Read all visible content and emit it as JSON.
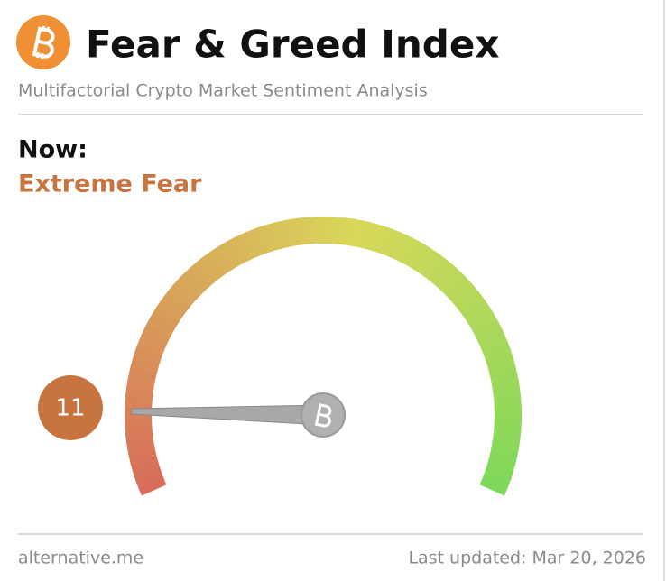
{
  "header": {
    "title": "Fear & Greed Index",
    "subtitle": "Multifactorial Crypto Market Sentiment Analysis"
  },
  "chart_data": {
    "type": "gauge",
    "label": "Now:",
    "classification": "Extreme Fear",
    "value": 11,
    "ylim": [
      0,
      100
    ],
    "color": "#c8743e"
  },
  "footer": {
    "source": "alternative.me",
    "updated": "Last updated: Mar 20, 2026"
  }
}
